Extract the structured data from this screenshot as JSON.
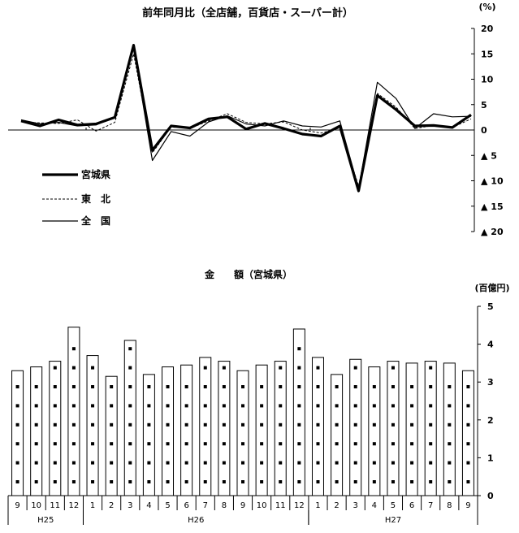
{
  "chart_data": [
    {
      "type": "line",
      "title": "前年同月比（全店舗，百貨店・スーパー計）",
      "unit": "(%)",
      "ylim": [
        -20,
        20
      ],
      "y_ticks": [
        "20",
        "15",
        "10",
        "5",
        "0",
        "▲ 5",
        "▲ 10",
        "▲ 15",
        "▲ 20"
      ],
      "y_tick_values": [
        20,
        15,
        10,
        5,
        0,
        -5,
        -10,
        -15,
        -20
      ],
      "x": [
        "H25-9",
        "H25-10",
        "H25-11",
        "H25-12",
        "H26-1",
        "H26-2",
        "H26-3",
        "H26-4",
        "H26-5",
        "H26-6",
        "H26-7",
        "H26-8",
        "H26-9",
        "H26-10",
        "H26-11",
        "H26-12",
        "H27-1",
        "H27-2",
        "H27-3",
        "H27-4",
        "H27-5",
        "H27-6",
        "H27-7",
        "H27-8",
        "H27-9"
      ],
      "legend_position": "left",
      "series": [
        {
          "name": "宮城県",
          "style": "thick",
          "values": [
            1.8,
            0.8,
            2.0,
            1.0,
            1.2,
            2.5,
            16.7,
            -4.0,
            0.8,
            0.4,
            2.2,
            2.6,
            0.2,
            1.3,
            0.3,
            -0.8,
            -1.2,
            0.8,
            -12.0,
            6.8,
            4.0,
            0.8,
            0.9,
            0.5,
            3.0
          ]
        },
        {
          "name": "東　北",
          "style": "dashed",
          "values": [
            1.6,
            1.4,
            1.3,
            2.0,
            -0.2,
            1.5,
            15.0,
            -4.5,
            0.6,
            0.3,
            1.8,
            3.2,
            1.5,
            1.2,
            1.6,
            0.0,
            -0.6,
            0.4,
            -11.0,
            7.2,
            4.5,
            0.3,
            0.9,
            0.5,
            2.2
          ]
        },
        {
          "name": "全　国",
          "style": "thin",
          "values": [
            2.0,
            1.2,
            1.5,
            0.8,
            1.0,
            2.6,
            16.3,
            -6.0,
            -0.3,
            -1.2,
            1.6,
            2.8,
            1.2,
            0.8,
            1.8,
            0.8,
            0.6,
            1.8,
            -11.5,
            9.4,
            6.2,
            0.3,
            3.2,
            2.6,
            2.7
          ]
        }
      ]
    },
    {
      "type": "bar",
      "title": "金　　額（宮城県）",
      "unit": "(百億円)",
      "ylim": [
        0,
        5
      ],
      "y_ticks": [
        "5",
        "4",
        "3",
        "2",
        "1",
        "0"
      ],
      "y_tick_values": [
        5,
        4,
        3,
        2,
        1,
        0
      ],
      "months": [
        "9",
        "10",
        "11",
        "12",
        "1",
        "2",
        "3",
        "4",
        "5",
        "6",
        "7",
        "8",
        "9",
        "10",
        "11",
        "12",
        "1",
        "2",
        "3",
        "4",
        "5",
        "6",
        "7",
        "8",
        "9"
      ],
      "years": [
        {
          "label": "H25",
          "count": 4
        },
        {
          "label": "H26",
          "count": 12
        },
        {
          "label": "H27",
          "count": 9
        }
      ],
      "values": [
        3.3,
        3.4,
        3.55,
        4.45,
        3.7,
        3.15,
        4.1,
        3.2,
        3.4,
        3.45,
        3.65,
        3.55,
        3.3,
        3.45,
        3.55,
        4.4,
        3.65,
        3.2,
        3.6,
        3.4,
        3.55,
        3.5,
        3.55,
        3.5,
        3.3
      ]
    }
  ]
}
